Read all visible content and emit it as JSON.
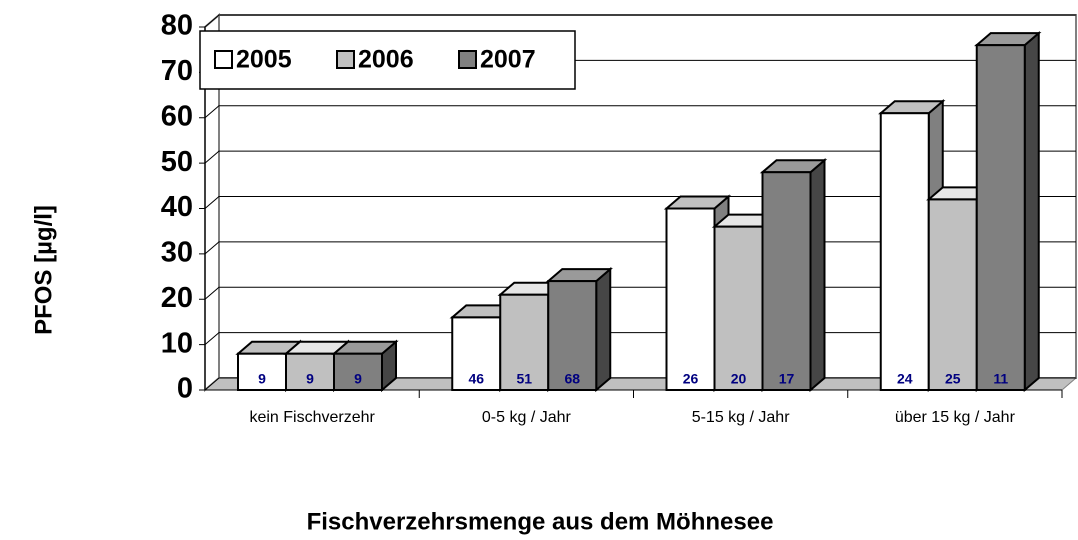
{
  "chart_data": {
    "type": "bar3d",
    "y_label": "PFOS [µg/l]",
    "x_label": "Fischverzehrsmenge aus dem Möhnesee",
    "categories": [
      "kein Fischverzehr",
      "0-5 kg / Jahr",
      "5-15 kg / Jahr",
      "über 15 kg / Jahr"
    ],
    "series": [
      {
        "name": "2005",
        "color": "#ffffff",
        "values": [
          8,
          16,
          40,
          61
        ],
        "annotations": [
          "9",
          "46",
          "26",
          "24"
        ]
      },
      {
        "name": "2006",
        "color": "#c0c0c0",
        "values": [
          8,
          21,
          36,
          42
        ],
        "annotations": [
          "9",
          "51",
          "20",
          "25"
        ]
      },
      {
        "name": "2007",
        "color": "#808080",
        "values": [
          8,
          24,
          48,
          76
        ],
        "annotations": [
          "9",
          "68",
          "17",
          "11"
        ]
      }
    ],
    "ylim": [
      0,
      80
    ],
    "yticks": [
      0,
      10,
      20,
      30,
      40,
      50,
      60,
      70,
      80
    ],
    "grid": true
  }
}
